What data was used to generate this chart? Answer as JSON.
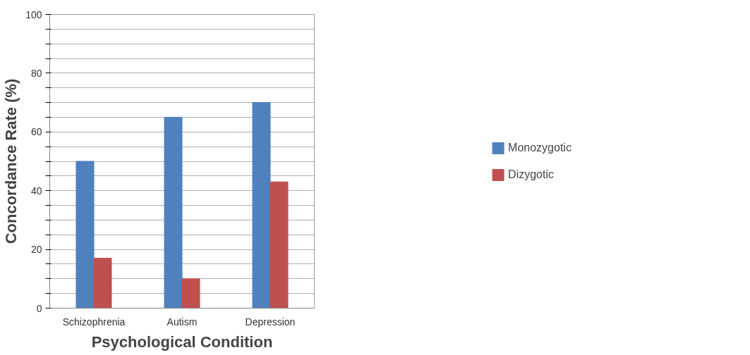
{
  "chart_data": {
    "type": "bar",
    "xlabel": "Psychological Condition",
    "ylabel": "Concordance Rate (%)",
    "categories": [
      "Schizophrenia",
      "Autism",
      "Depression"
    ],
    "series": [
      {
        "name": "Monozygotic",
        "color": "#4f81bd",
        "values": [
          50,
          65,
          70
        ]
      },
      {
        "name": "Dizygotic",
        "color": "#c0504d",
        "values": [
          17,
          10,
          43
        ]
      }
    ],
    "ylim": [
      0,
      100
    ],
    "yticks": [
      0,
      {
        "value": 5,
        "label": null
      },
      {
        "value": 10,
        "label": null
      },
      {
        "value": 15,
        "label": null
      },
      20,
      {
        "value": 25,
        "label": null
      },
      {
        "value": 30,
        "label": null
      },
      {
        "value": 35,
        "label": null
      },
      40,
      {
        "value": 45,
        "label": null
      },
      {
        "value": 50,
        "label": null
      },
      {
        "value": 55,
        "label": null
      },
      60,
      {
        "value": 65,
        "label": null
      },
      {
        "value": 70,
        "label": null
      },
      {
        "value": 75,
        "label": null
      },
      80,
      {
        "value": 85,
        "label": null
      },
      {
        "value": 90,
        "label": null
      },
      {
        "value": 95,
        "label": null
      },
      100
    ],
    "grid": "y",
    "legend": "right"
  }
}
